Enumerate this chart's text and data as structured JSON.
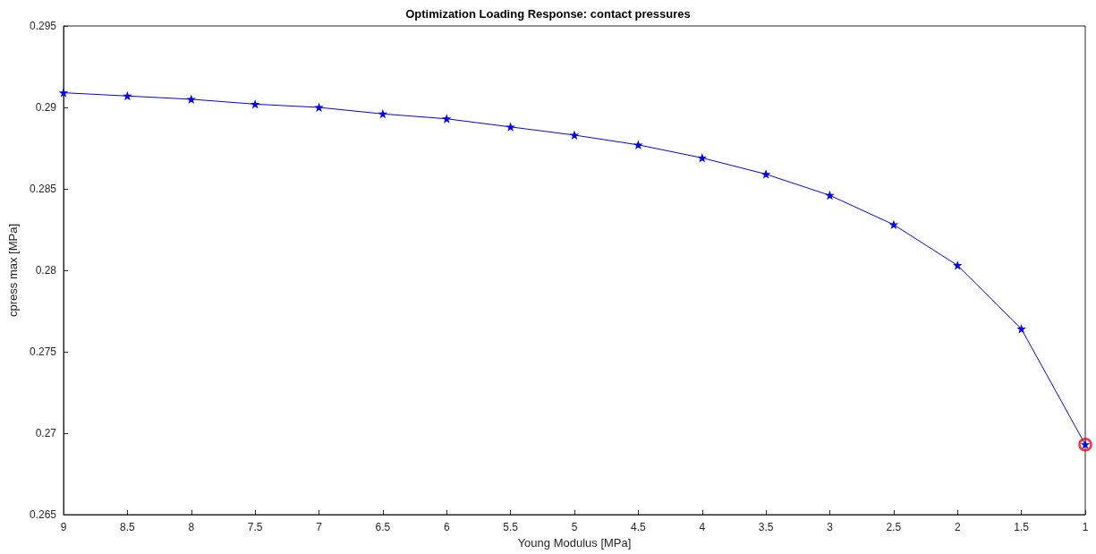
{
  "chart_data": {
    "type": "line",
    "title": "Optimization Loading Response: contact pressures",
    "xlabel": "Young Modulus [MPa]",
    "ylabel": "cpress max [MPa]",
    "x": [
      9,
      8.5,
      8,
      7.5,
      7,
      6.5,
      6,
      5.5,
      5,
      4.5,
      4,
      3.5,
      3,
      2.5,
      2,
      1.5,
      1
    ],
    "series": [
      {
        "color": "#0000ff",
        "marker": "star",
        "line_style": "solid",
        "values": [
          0.2909,
          0.2907,
          0.2905,
          0.2902,
          0.29,
          0.2896,
          0.2893,
          0.2888,
          0.2883,
          0.2877,
          0.2869,
          0.2859,
          0.2846,
          0.2828,
          0.2803,
          0.2764,
          0.2693
        ]
      },
      {
        "type": "scatter",
        "color": "#ff0000",
        "marker": "circle",
        "x": [
          1
        ],
        "values": [
          0.2693
        ]
      }
    ],
    "xlim": [
      9,
      1
    ],
    "xticks": [
      9,
      8.5,
      8,
      7.5,
      7,
      6.5,
      6,
      5.5,
      5,
      4.5,
      4,
      3.5,
      3,
      2.5,
      2,
      1.5,
      1
    ],
    "ylim": [
      0.265,
      0.295
    ],
    "yticks": [
      0.265,
      0.27,
      0.275,
      0.28,
      0.285,
      0.29,
      0.295
    ],
    "grid": false
  }
}
